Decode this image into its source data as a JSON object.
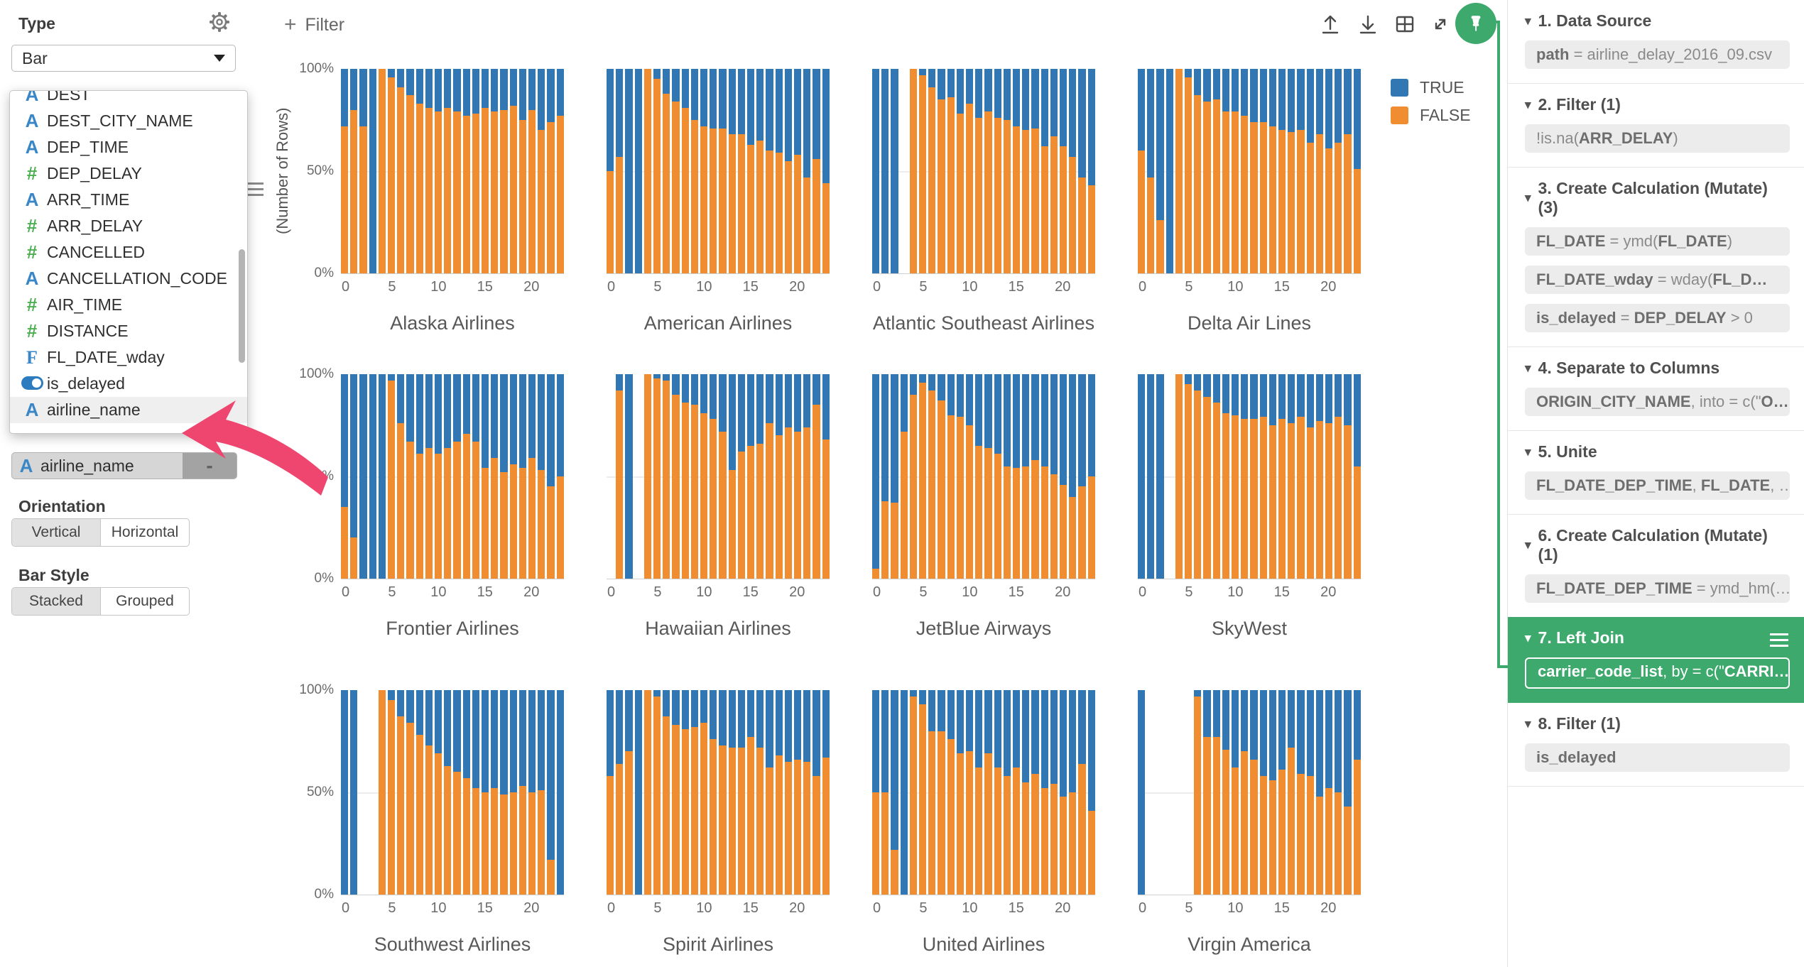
{
  "sidebar": {
    "type_label": "Type",
    "type_value": "Bar",
    "gear_icon": "settings-gear",
    "dropdown_items": [
      {
        "icon": "A",
        "label": "DEST",
        "clipped": true
      },
      {
        "icon": "A",
        "label": "DEST_CITY_NAME"
      },
      {
        "icon": "A",
        "label": "DEP_TIME"
      },
      {
        "icon": "#",
        "label": "DEP_DELAY"
      },
      {
        "icon": "A",
        "label": "ARR_TIME"
      },
      {
        "icon": "#",
        "label": "ARR_DELAY"
      },
      {
        "icon": "#",
        "label": "CANCELLED"
      },
      {
        "icon": "A",
        "label": "CANCELLATION_CODE"
      },
      {
        "icon": "#",
        "label": "AIR_TIME"
      },
      {
        "icon": "#",
        "label": "DISTANCE"
      },
      {
        "icon": "F",
        "label": "FL_DATE_wday"
      },
      {
        "icon": "toggle",
        "label": "is_delayed"
      },
      {
        "icon": "A",
        "label": "airline_name",
        "highlighted": true
      }
    ],
    "selected_field": {
      "icon": "A",
      "label": "airline_name",
      "remove_label": "-"
    },
    "orientation": {
      "label": "Orientation",
      "options": [
        "Vertical",
        "Horizontal"
      ],
      "active": "Vertical"
    },
    "bar_style": {
      "label": "Bar Style",
      "options": [
        "Stacked",
        "Grouped"
      ],
      "active": "Stacked"
    }
  },
  "toolbar": {
    "filter_label": "Filter",
    "filter_plus": "+",
    "icons": [
      "upload-icon",
      "download-icon",
      "table-icon",
      "expand-icon",
      "pin-icon"
    ],
    "pin_color": "#3ea96d"
  },
  "legend": {
    "items": [
      {
        "label": "TRUE",
        "color": "#3077b4"
      },
      {
        "label": "FALSE",
        "color": "#f08d31"
      }
    ]
  },
  "chart_data": {
    "type": "bar",
    "stacked": true,
    "unit": "percent_of_rows",
    "ylabel": "(Number of Rows)",
    "y_ticks": [
      "100%",
      "50%",
      "0%"
    ],
    "x_ticks": [
      0,
      5,
      10,
      15,
      20
    ],
    "x_range": [
      0,
      23
    ],
    "series_names": [
      "TRUE",
      "FALSE"
    ],
    "colors": {
      "TRUE": "#3077b4",
      "FALSE": "#f08d31"
    },
    "note": "values are FALSE (orange) percent per hour 0-23; TRUE fills remainder to 100; null = no bar",
    "facets": [
      {
        "title": "Alaska Airlines",
        "false_pct": [
          72,
          80,
          72,
          0,
          100,
          96,
          91,
          87,
          83,
          81,
          79,
          81,
          79,
          77,
          78,
          81,
          79,
          80,
          82,
          75,
          80,
          70,
          74,
          77
        ]
      },
      {
        "title": "American Airlines",
        "false_pct": [
          50,
          57,
          0,
          0,
          100,
          95,
          88,
          84,
          81,
          75,
          72,
          71,
          71,
          68,
          68,
          63,
          65,
          60,
          59,
          55,
          58,
          47,
          56,
          44
        ]
      },
      {
        "title": "Atlantic Southeast Airlines",
        "false_pct": [
          0,
          0,
          0,
          null,
          100,
          97,
          91,
          85,
          86,
          78,
          83,
          76,
          79,
          76,
          75,
          72,
          70,
          71,
          62,
          67,
          62,
          57,
          47,
          43
        ]
      },
      {
        "title": "Delta Air Lines",
        "false_pct": [
          60,
          47,
          26,
          0,
          100,
          96,
          87,
          84,
          85,
          79,
          79,
          77,
          74,
          74,
          72,
          70,
          69,
          70,
          64,
          68,
          61,
          64,
          68,
          51
        ]
      },
      {
        "title": "Frontier Airlines",
        "false_pct": [
          35,
          20,
          0,
          0,
          0,
          97,
          76,
          67,
          61,
          64,
          61,
          64,
          67,
          71,
          67,
          54,
          59,
          52,
          56,
          54,
          59,
          53,
          45,
          50
        ]
      },
      {
        "title": "Hawaiian Airlines",
        "false_pct": [
          null,
          92,
          0,
          null,
          100,
          98,
          97,
          90,
          86,
          85,
          81,
          78,
          72,
          53,
          62,
          65,
          66,
          76,
          70,
          74,
          72,
          74,
          85,
          68
        ]
      },
      {
        "title": "JetBlue Airways",
        "false_pct": [
          5,
          38,
          37,
          72,
          90,
          96,
          92,
          87,
          80,
          79,
          75,
          65,
          64,
          61,
          55,
          54,
          55,
          58,
          55,
          51,
          46,
          40,
          45,
          50
        ]
      },
      {
        "title": "SkyWest",
        "false_pct": [
          0,
          0,
          0,
          null,
          100,
          95,
          92,
          89,
          86,
          81,
          80,
          78,
          78,
          79,
          75,
          78,
          76,
          79,
          74,
          77,
          76,
          79,
          75,
          55
        ]
      },
      {
        "title": "Southwest Airlines",
        "false_pct": [
          0,
          0,
          null,
          null,
          100,
          95,
          87,
          84,
          78,
          73,
          69,
          63,
          60,
          57,
          52,
          50,
          52,
          49,
          50,
          53,
          50,
          51,
          17,
          0
        ]
      },
      {
        "title": "Spirit Airlines",
        "false_pct": [
          58,
          64,
          70,
          0,
          100,
          97,
          87,
          83,
          81,
          82,
          84,
          76,
          73,
          72,
          72,
          77,
          72,
          62,
          68,
          65,
          66,
          65,
          58,
          67
        ]
      },
      {
        "title": "United Airlines",
        "false_pct": [
          50,
          50,
          22,
          0,
          97,
          93,
          80,
          80,
          76,
          69,
          70,
          62,
          69,
          62,
          58,
          62,
          55,
          59,
          52,
          54,
          48,
          50,
          64,
          41
        ]
      },
      {
        "title": "Virgin America",
        "false_pct": [
          0,
          null,
          null,
          null,
          null,
          null,
          97,
          77,
          77,
          71,
          62,
          70,
          66,
          58,
          56,
          61,
          72,
          59,
          58,
          48,
          52,
          50,
          43,
          66
        ]
      }
    ]
  },
  "steps": [
    {
      "title": "1. Data Source",
      "pills": [
        [
          {
            "t": "path",
            "b": true
          },
          {
            "t": " = airline_delay_2016_09.csv"
          }
        ]
      ]
    },
    {
      "title": "2. Filter (1)",
      "pills": [
        [
          {
            "t": "!is.na("
          },
          {
            "t": "ARR_DELAY",
            "b": true
          },
          {
            "t": ")"
          }
        ]
      ]
    },
    {
      "title": "3. Create Calculation (Mutate) (3)",
      "pills": [
        [
          {
            "t": "FL_DATE",
            "b": true
          },
          {
            "t": " = ymd("
          },
          {
            "t": "FL_DATE",
            "b": true
          },
          {
            "t": ")"
          }
        ],
        [
          {
            "t": "FL_DATE_wday",
            "b": true
          },
          {
            "t": " = wday("
          },
          {
            "t": "FL_D…",
            "b": true
          }
        ],
        [
          {
            "t": "is_delayed",
            "b": true
          },
          {
            "t": " = "
          },
          {
            "t": "DEP_DELAY",
            "b": true
          },
          {
            "t": " > 0"
          }
        ]
      ]
    },
    {
      "title": "4. Separate to Columns",
      "pills": [
        [
          {
            "t": "ORIGIN_CITY_NAME",
            "b": true
          },
          {
            "t": ", into = c(\""
          },
          {
            "t": "O…",
            "b": true
          }
        ]
      ]
    },
    {
      "title": "5. Unite",
      "pills": [
        [
          {
            "t": "FL_DATE_DEP_TIME",
            "b": true
          },
          {
            "t": ", "
          },
          {
            "t": "FL_DATE",
            "b": true
          },
          {
            "t": ", …"
          }
        ]
      ]
    },
    {
      "title": "6. Create Calculation (Mutate) (1)",
      "no_divider": true,
      "pills": [
        [
          {
            "t": "FL_DATE_DEP_TIME",
            "b": true
          },
          {
            "t": " = ymd_hm(…"
          }
        ]
      ]
    },
    {
      "title": "7. Left Join",
      "green": true,
      "menu_icon": true,
      "pills": [
        [
          {
            "t": "carrier_code_list",
            "b": true
          },
          {
            "t": ", by = c(\""
          },
          {
            "t": "CARRI…",
            "b": true
          }
        ]
      ]
    },
    {
      "title": "8. Filter (1)",
      "pills": [
        [
          {
            "t": "is_delayed",
            "b": true
          }
        ]
      ]
    }
  ],
  "annotation": {
    "arrow_color": "#ef4670",
    "green_accent": "#3ea96d"
  }
}
